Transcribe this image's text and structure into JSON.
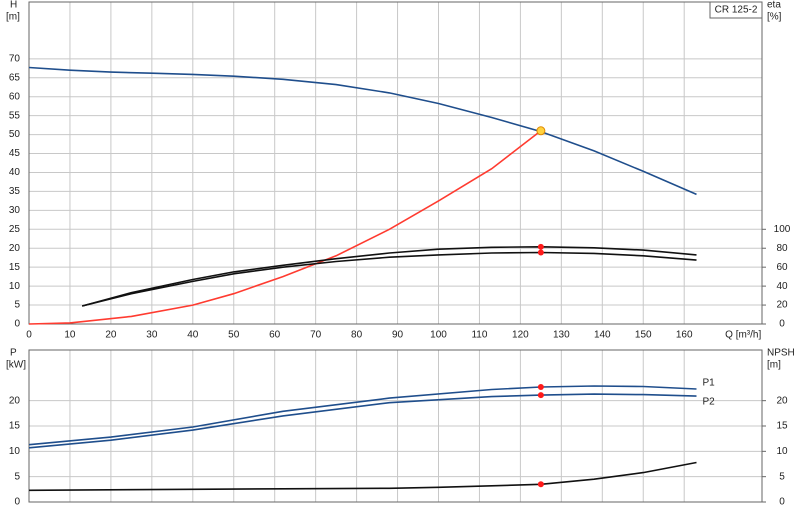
{
  "chart_data": [
    {
      "type": "line",
      "title": "CR 125-2",
      "ylabel": "H",
      "ylabel_unit": "[m]",
      "y2label": "eta",
      "y2label_unit": "[%]",
      "xlabel": "Q [m³/h]",
      "xlim": [
        0,
        179
      ],
      "xticks": [
        0,
        10,
        20,
        30,
        40,
        50,
        60,
        70,
        80,
        90,
        100,
        110,
        120,
        130,
        140,
        150,
        160
      ],
      "ylim": [
        0,
        85
      ],
      "yticks": [
        0,
        5,
        10,
        15,
        20,
        25,
        30,
        35,
        40,
        45,
        50,
        55,
        60,
        65,
        70
      ],
      "y2lim": [
        0,
        340
      ],
      "y2ticks": [
        0,
        20,
        40,
        60,
        80,
        100
      ],
      "grid": true,
      "series": [
        {
          "color": "#1f4e8c",
          "x": [
            0,
            10,
            20,
            30,
            40,
            50,
            62,
            75,
            88,
            100,
            113,
            125,
            138,
            150,
            163
          ],
          "values": [
            67.7,
            67,
            66.5,
            66.2,
            65.9,
            65.4,
            64.6,
            63.2,
            61,
            58.2,
            54.5,
            50.8,
            45.7,
            40.3,
            34.2
          ]
        },
        {
          "color": "#ff3b30",
          "x": [
            0,
            10,
            25,
            40,
            50,
            62,
            75,
            88,
            100,
            113,
            125
          ],
          "values": [
            0,
            0.3,
            2,
            5,
            8,
            12.5,
            18,
            25,
            32.5,
            41,
            51
          ]
        },
        {
          "color": "#111111",
          "axis": "y2",
          "x": [
            13,
            25,
            40,
            50,
            62,
            75,
            88,
            100,
            113,
            125,
            138,
            150,
            163
          ],
          "values": [
            19,
            33,
            47,
            55,
            62,
            69,
            75,
            79,
            81,
            81.5,
            80.5,
            78,
            73
          ]
        },
        {
          "color": "#111111",
          "axis": "y2",
          "x": [
            13,
            25,
            40,
            50,
            62,
            75,
            88,
            100,
            113,
            125,
            138,
            150,
            163
          ],
          "values": [
            19,
            32,
            45,
            53,
            60,
            66,
            70.5,
            73,
            75,
            75.5,
            74.5,
            72,
            67.5
          ]
        }
      ],
      "markers": [
        {
          "x": 125,
          "value": 51,
          "color": "#ffd23f"
        },
        {
          "x": 125,
          "value": 81.5,
          "color": "#ff1a1a",
          "axis": "y2"
        },
        {
          "x": 125,
          "value": 75.5,
          "color": "#ff1a1a",
          "axis": "y2"
        }
      ]
    },
    {
      "type": "line",
      "ylabel": "P",
      "ylabel_unit": "[kW]",
      "y2label": "NPSH",
      "y2label_unit": "[m]",
      "xlim": [
        0,
        179
      ],
      "ylim": [
        0,
        30
      ],
      "yticks": [
        0,
        5,
        10,
        15,
        20
      ],
      "y2lim": [
        0,
        30
      ],
      "y2ticks": [
        0,
        5,
        10,
        15,
        20
      ],
      "grid": true,
      "series": [
        {
          "name": "P1",
          "color": "#1f4e8c",
          "x": [
            0,
            20,
            40,
            62,
            88,
            113,
            125,
            138,
            150,
            163
          ],
          "values": [
            11.3,
            12.8,
            14.8,
            17.9,
            20.5,
            22.2,
            22.7,
            22.9,
            22.8,
            22.3
          ]
        },
        {
          "name": "P2",
          "color": "#1f4e8c",
          "x": [
            0,
            20,
            40,
            62,
            88,
            113,
            125,
            138,
            150,
            163
          ],
          "values": [
            10.7,
            12.2,
            14.2,
            17,
            19.6,
            20.8,
            21.1,
            21.3,
            21.2,
            20.9
          ]
        },
        {
          "color": "#111111",
          "axis": "y2",
          "x": [
            0,
            40,
            62,
            88,
            100,
            113,
            125,
            138,
            150,
            163
          ],
          "values": [
            2.3,
            2.5,
            2.6,
            2.7,
            2.9,
            3.2,
            3.5,
            4.5,
            5.8,
            7.8
          ]
        }
      ],
      "markers": [
        {
          "x": 125,
          "value": 22.7,
          "color": "#ff1a1a"
        },
        {
          "x": 125,
          "value": 21.1,
          "color": "#ff1a1a"
        },
        {
          "x": 125,
          "value": 3.5,
          "color": "#ff1a1a",
          "axis": "y2"
        }
      ]
    }
  ]
}
